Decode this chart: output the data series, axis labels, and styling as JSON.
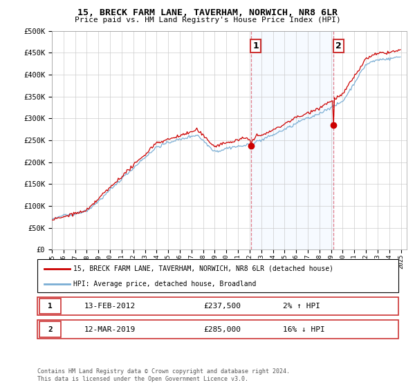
{
  "title": "15, BRECK FARM LANE, TAVERHAM, NORWICH, NR8 6LR",
  "subtitle": "Price paid vs. HM Land Registry's House Price Index (HPI)",
  "ylabel_ticks": [
    "£0",
    "£50K",
    "£100K",
    "£150K",
    "£200K",
    "£250K",
    "£300K",
    "£350K",
    "£400K",
    "£450K",
    "£500K"
  ],
  "ytick_values": [
    0,
    50000,
    100000,
    150000,
    200000,
    250000,
    300000,
    350000,
    400000,
    450000,
    500000
  ],
  "ylim": [
    0,
    500000
  ],
  "xlim_start": 1995.0,
  "xlim_end": 2025.5,
  "purchase1_x": 2012.12,
  "purchase1_y": 237500,
  "purchase2_x": 2019.21,
  "purchase2_y": 285000,
  "annotation1_label": "1",
  "annotation2_label": "2",
  "legend_line1": "15, BRECK FARM LANE, TAVERHAM, NORWICH, NR8 6LR (detached house)",
  "legend_line2": "HPI: Average price, detached house, Broadland",
  "info1_num": "1",
  "info1_date": "13-FEB-2012",
  "info1_price": "£237,500",
  "info1_hpi": "2% ↑ HPI",
  "info2_num": "2",
  "info2_date": "12-MAR-2019",
  "info2_price": "£285,000",
  "info2_hpi": "16% ↓ HPI",
  "footer": "Contains HM Land Registry data © Crown copyright and database right 2024.\nThis data is licensed under the Open Government Licence v3.0.",
  "price_line_color": "#cc0000",
  "hpi_line_color": "#7aaed4",
  "annotation_box_color": "#cc3333",
  "vline_color": "#dd6677",
  "shaded_region_color": "#ddeeff",
  "background_color": "#ffffff"
}
